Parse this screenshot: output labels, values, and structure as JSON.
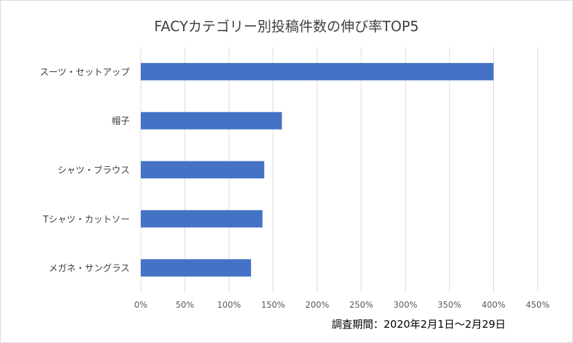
{
  "chart_data": {
    "type": "bar",
    "orientation": "horizontal",
    "title": "FACYカテゴリー別投稿件数の伸び率TOP5",
    "categories": [
      "スーツ・セットアップ",
      "帽子",
      "シャツ・ブラウス",
      "Tシャツ・カットソー",
      "メガネ・サングラス"
    ],
    "values": [
      400,
      160,
      140,
      138,
      125
    ],
    "unit": "%",
    "xlim": [
      0,
      450
    ],
    "xticks": [
      0,
      50,
      100,
      150,
      200,
      250,
      300,
      350,
      400,
      450
    ],
    "xtick_labels": [
      "0%",
      "50%",
      "100%",
      "150%",
      "200%",
      "250%",
      "300%",
      "350%",
      "400%",
      "450%"
    ],
    "grid": "vertical",
    "bar_color": "#4472C4",
    "gridline_color": "#d9d9d9"
  },
  "note": "調査期間：2020年2月1日〜2月29日"
}
